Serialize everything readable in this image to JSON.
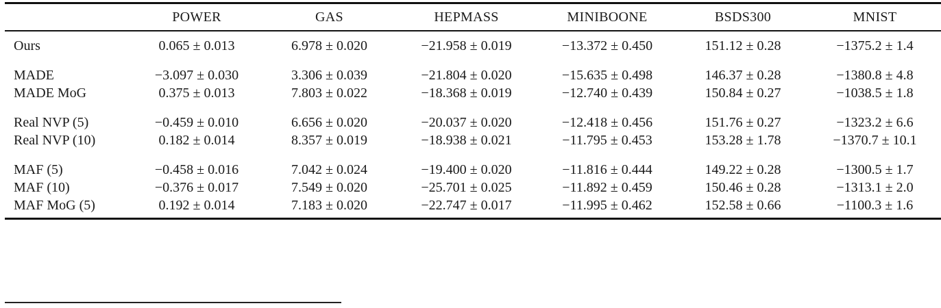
{
  "table": {
    "columns": [
      "",
      "POWER",
      "GAS",
      "HEPMASS",
      "MINIBOONE",
      "BSDS300",
      "MNIST"
    ],
    "rows": [
      {
        "label": "Ours",
        "cells": [
          "0.065 ± 0.013",
          "6.978 ± 0.020",
          "−21.958 ± 0.019",
          "−13.372 ± 0.450",
          "151.12 ± 0.28",
          "−1375.2 ± 1.4"
        ]
      },
      {
        "label": "MADE",
        "cells": [
          "−3.097 ± 0.030",
          "3.306 ± 0.039",
          "−21.804 ± 0.020",
          "−15.635 ± 0.498",
          "146.37 ± 0.28",
          "−1380.8 ± 4.8"
        ]
      },
      {
        "label": "MADE MoG",
        "cells": [
          "0.375 ± 0.013",
          "7.803 ± 0.022",
          "−18.368 ± 0.019",
          "−12.740 ± 0.439",
          "150.84 ± 0.27",
          "−1038.5 ± 1.8"
        ]
      },
      {
        "label": "Real NVP (5)",
        "cells": [
          "−0.459 ± 0.010",
          "6.656 ± 0.020",
          "−20.037 ± 0.020",
          "−12.418 ± 0.456",
          "151.76 ± 0.27",
          "−1323.2 ± 6.6"
        ]
      },
      {
        "label": "Real NVP (10)",
        "cells": [
          "0.182 ± 0.014",
          "8.357 ± 0.019",
          "−18.938 ± 0.021",
          "−11.795 ± 0.453",
          "153.28 ± 1.78",
          "−1370.7 ± 10.1"
        ]
      },
      {
        "label": "MAF (5)",
        "cells": [
          "−0.458 ± 0.016",
          "7.042 ± 0.024",
          "−19.400 ± 0.020",
          "−11.816 ± 0.444",
          "149.22 ± 0.28",
          "−1300.5 ± 1.7"
        ]
      },
      {
        "label": "MAF (10)",
        "cells": [
          "−0.376 ± 0.017",
          "7.549 ± 0.020",
          "−25.701 ± 0.025",
          "−11.892 ± 0.459",
          "150.46 ± 0.28",
          "−1313.1 ± 2.0"
        ]
      },
      {
        "label": "MAF MoG (5)",
        "cells": [
          "0.192 ± 0.014",
          "7.183 ± 0.020",
          "−22.747 ± 0.017",
          "−11.995 ± 0.462",
          "152.58 ± 0.66",
          "−1100.3 ± 1.6"
        ]
      }
    ],
    "rule_color": "#111111"
  }
}
